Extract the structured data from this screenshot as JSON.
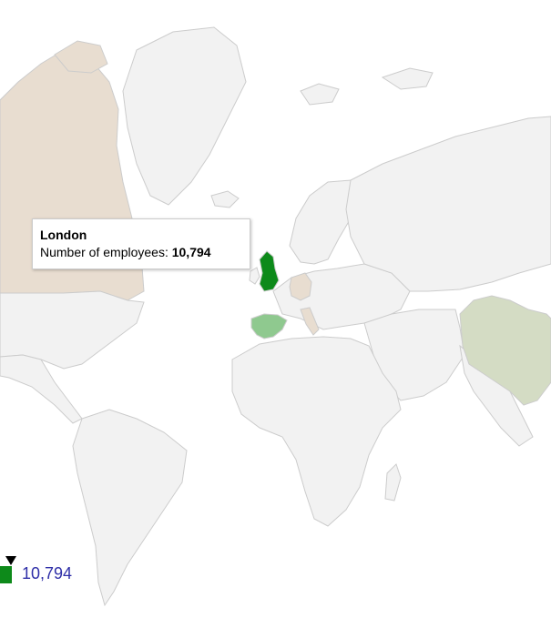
{
  "tooltip": {
    "title": "London",
    "label": "Number of employees:",
    "value": "10,794"
  },
  "legend": {
    "value": "10,794"
  },
  "colors": {
    "land": "#f2f2f2",
    "border": "#cccccc",
    "uk": "#0d8a1a",
    "spain": "#8fc98f",
    "china": "#d4dcc4",
    "canada_germany_italy": "#e8ddd0",
    "legend_text": "#2f2fa8",
    "marker": "#000000"
  },
  "regions": [
    {
      "name": "United Kingdom",
      "employees": 10794,
      "color_key": "uk"
    },
    {
      "name": "Spain",
      "color_key": "spain"
    },
    {
      "name": "China",
      "color_key": "china"
    },
    {
      "name": "Canada",
      "color_key": "canada_germany_italy"
    },
    {
      "name": "Germany",
      "color_key": "canada_germany_italy"
    },
    {
      "name": "Italy",
      "color_key": "canada_germany_italy"
    }
  ]
}
